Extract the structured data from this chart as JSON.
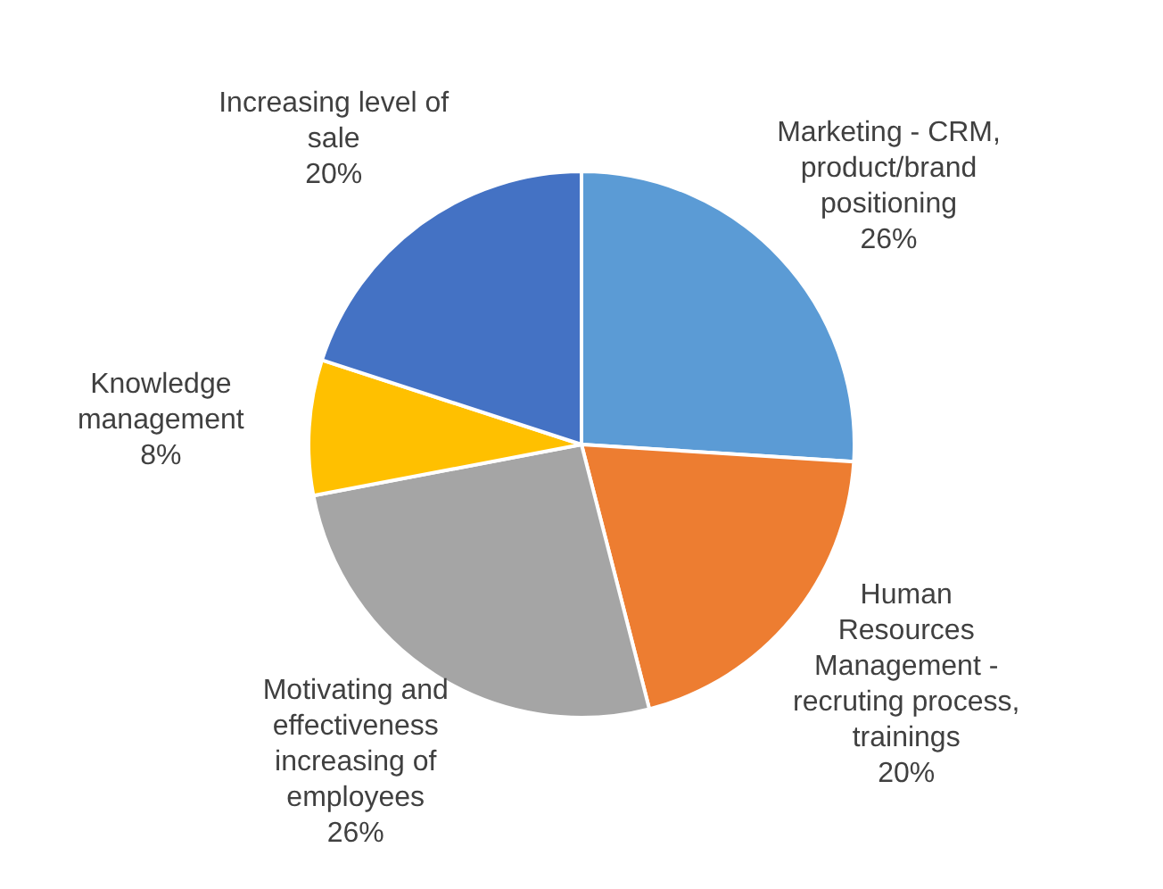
{
  "chart_data": {
    "type": "pie",
    "categories": [
      "Marketing - CRM, product/brand positioning",
      "Human Resources Management - recruting process, trainings",
      "Motivating and effectiveness increasing of employees",
      "Knowledge management",
      "Increasing level of sale"
    ],
    "values": [
      26,
      20,
      26,
      8,
      20
    ],
    "value_labels": [
      "26%",
      "20%",
      "26%",
      "8%",
      "20%"
    ],
    "colors": [
      "#5b9bd5",
      "#ed7d31",
      "#a5a5a5",
      "#ffc000",
      "#4472c4"
    ],
    "legend": false
  }
}
